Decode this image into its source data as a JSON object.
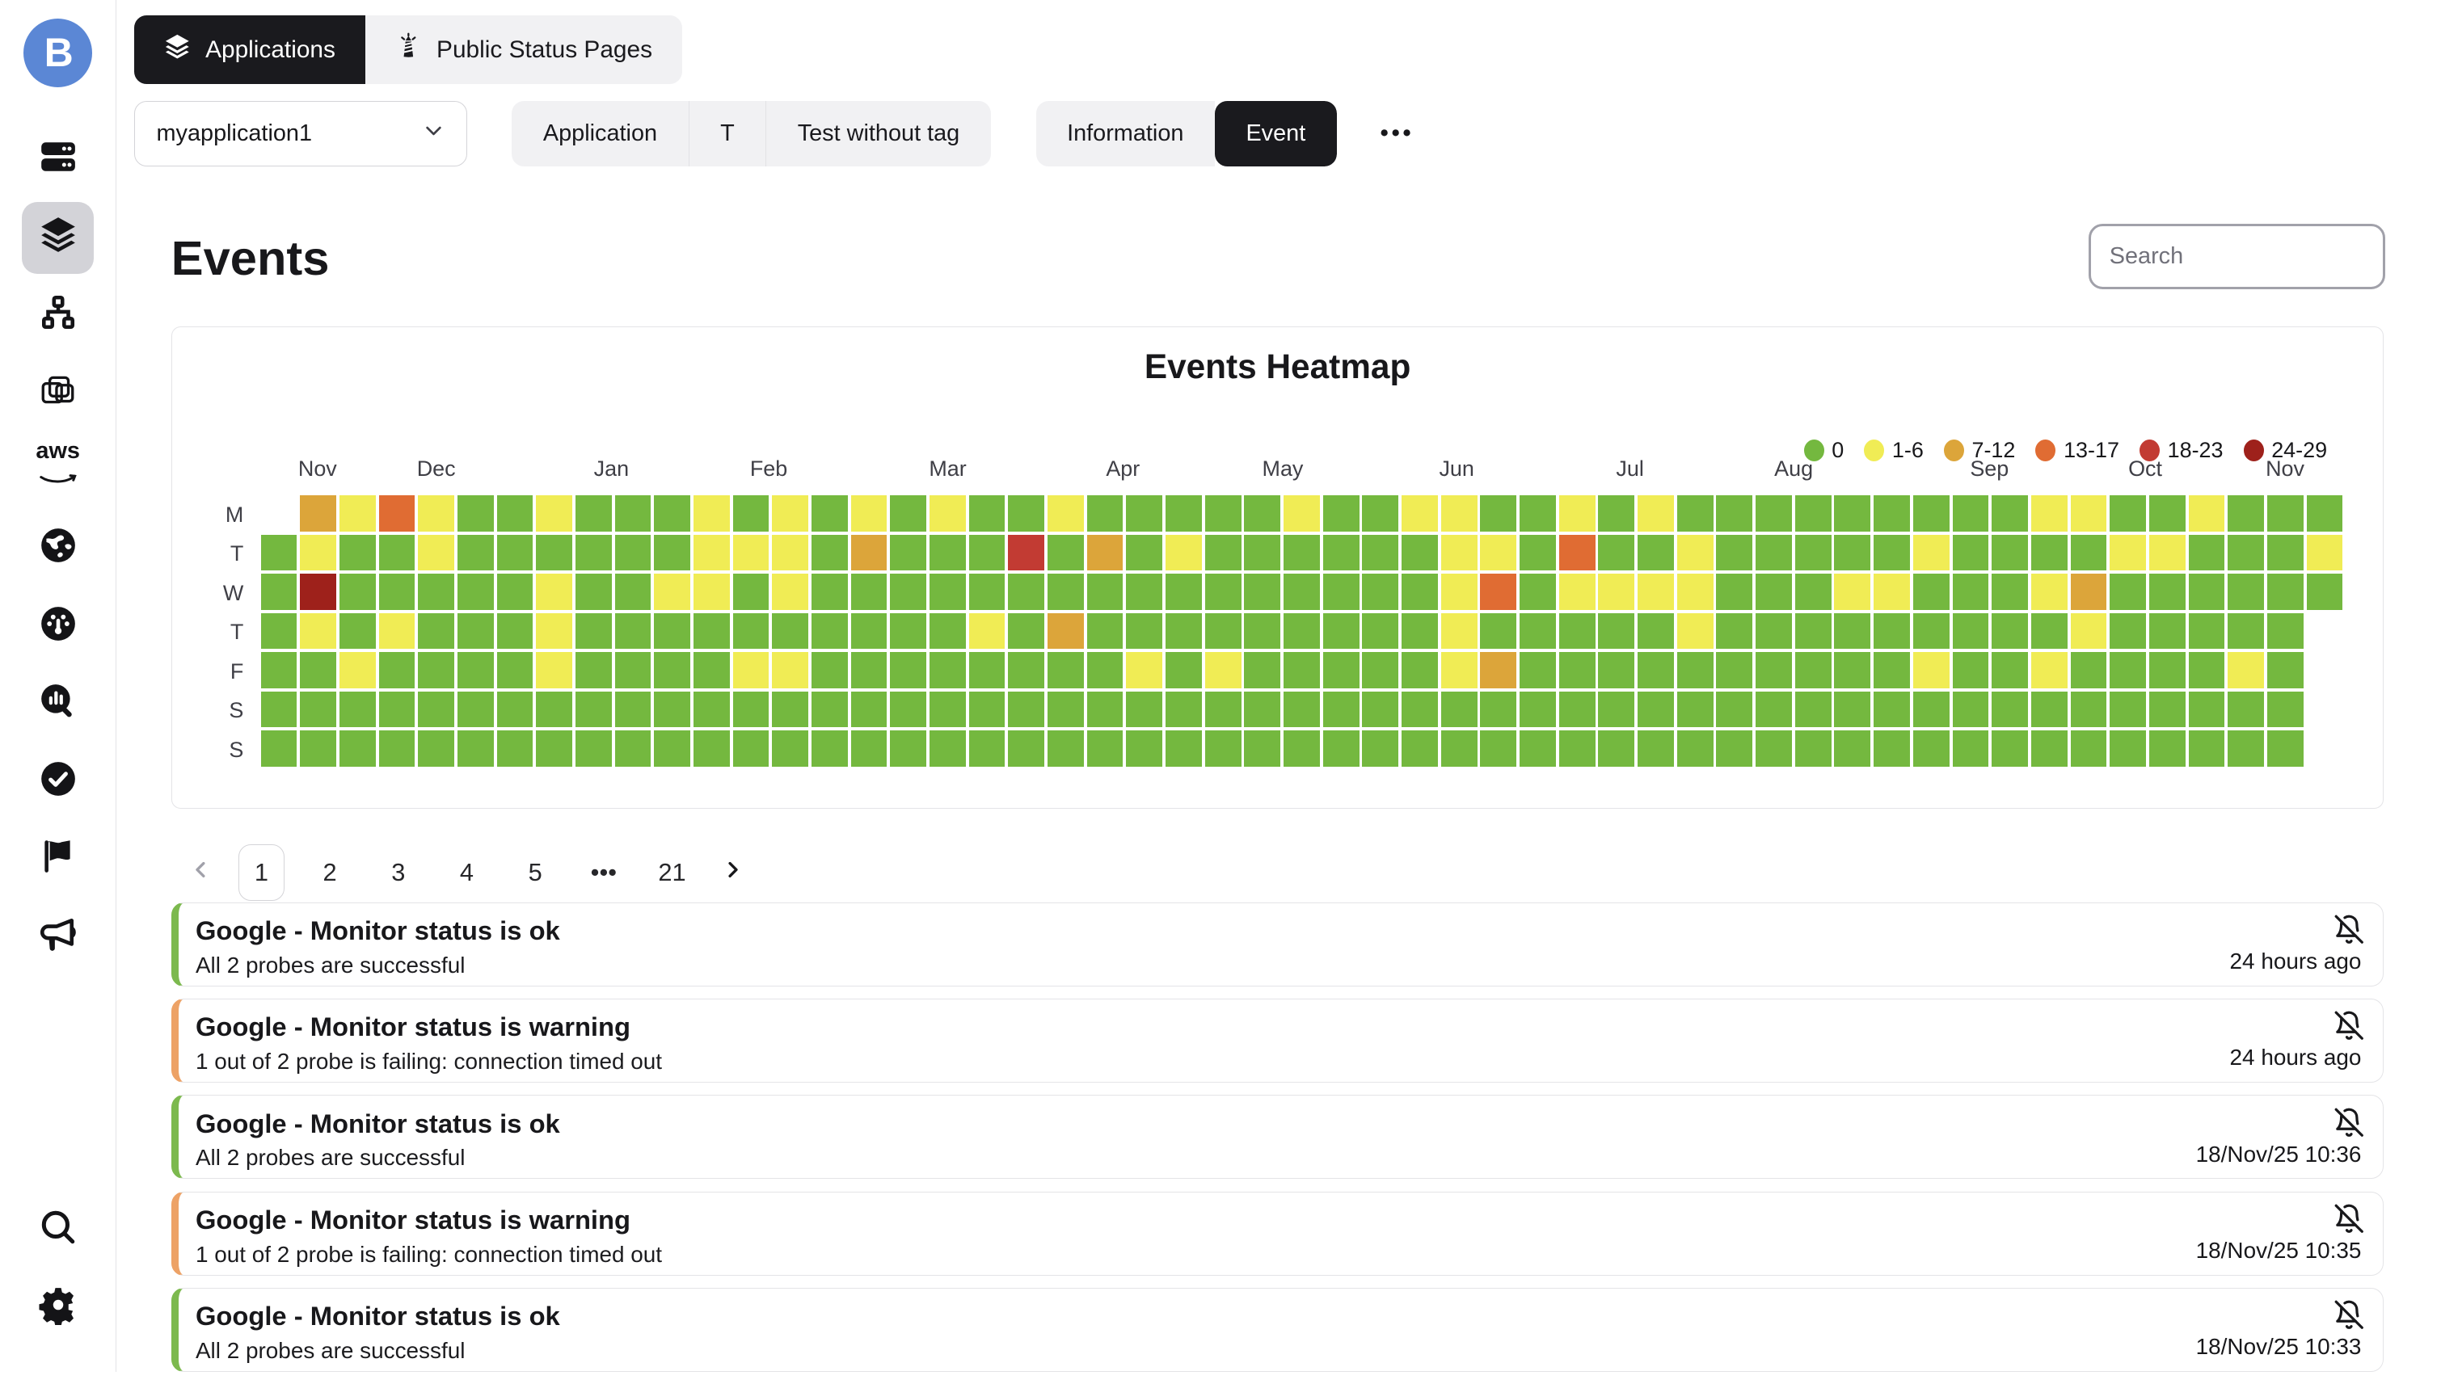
{
  "topbar": {
    "tabs": [
      {
        "label": "Applications",
        "active": true
      },
      {
        "label": "Public Status Pages",
        "active": false
      }
    ]
  },
  "toolbar": {
    "app_selector_value": "myapplication1",
    "tag_tabs": [
      "Application",
      "T",
      "Test without tag"
    ],
    "view_tabs": [
      {
        "label": "Information",
        "active": false
      },
      {
        "label": "Event",
        "active": true
      }
    ],
    "more_label": "•••"
  },
  "sidebar": {
    "icons": [
      "server-rack",
      "layers",
      "network",
      "containers",
      "aws",
      "globe",
      "gauge",
      "metric-search",
      "check-circle",
      "flag",
      "megaphone"
    ],
    "active_icon": "layers",
    "bottom_icons": [
      "search",
      "settings"
    ]
  },
  "page": {
    "title": "Events",
    "search_placeholder": "Search"
  },
  "chart_data": {
    "type": "heatmap",
    "title": "Events Heatmap",
    "row_labels": [
      "M",
      "T",
      "W",
      "T",
      "F",
      "S",
      "S"
    ],
    "months": [
      {
        "label": "Nov",
        "left_pct": 1.8
      },
      {
        "label": "Dec",
        "left_pct": 7.5
      },
      {
        "label": "Jan",
        "left_pct": 16.0
      },
      {
        "label": "Feb",
        "left_pct": 23.5
      },
      {
        "label": "Mar",
        "left_pct": 32.1
      },
      {
        "label": "Apr",
        "left_pct": 40.6
      },
      {
        "label": "May",
        "left_pct": 48.1
      },
      {
        "label": "Jun",
        "left_pct": 56.6
      },
      {
        "label": "Jul",
        "left_pct": 65.1
      },
      {
        "label": "Aug",
        "left_pct": 72.7
      },
      {
        "label": "Sep",
        "left_pct": 82.1
      },
      {
        "label": "Oct",
        "left_pct": 89.7
      },
      {
        "label": "Nov",
        "left_pct": 96.3
      }
    ],
    "legend": [
      {
        "label": "0",
        "color": "#74b83f"
      },
      {
        "label": "1-6",
        "color": "#f0ec55"
      },
      {
        "label": "7-12",
        "color": "#dca53a"
      },
      {
        "label": "13-17",
        "color": "#e06c33"
      },
      {
        "label": "18-23",
        "color": "#c23b33"
      },
      {
        "label": "24-29",
        "color": "#9e211b"
      }
    ],
    "palette": {
      "g": "#74b83f",
      "y": "#f0ec55",
      "dy": "#dca53a",
      "o": "#e06c33",
      "r": "#c23b33",
      "dr": "#9e211b"
    },
    "columns": 53,
    "grid": [
      [
        "",
        "dy",
        "y",
        "o",
        "y",
        "g",
        "g",
        "y",
        "g",
        "g",
        "g",
        "y",
        "g",
        "y",
        "g",
        "y",
        "g",
        "y",
        "g",
        "g",
        "y",
        "g",
        "g",
        "g",
        "g",
        "g",
        "y",
        "g",
        "g",
        "y",
        "y",
        "g",
        "g",
        "y",
        "g",
        "y",
        "g",
        "g",
        "g",
        "g",
        "g",
        "g",
        "g",
        "g",
        "g",
        "y",
        "y",
        "g",
        "g",
        "y",
        "g",
        "g",
        "g"
      ],
      [
        "g",
        "y",
        "g",
        "g",
        "y",
        "g",
        "g",
        "g",
        "g",
        "g",
        "g",
        "y",
        "y",
        "y",
        "g",
        "dy",
        "g",
        "g",
        "g",
        "r",
        "g",
        "dy",
        "g",
        "y",
        "g",
        "g",
        "g",
        "g",
        "g",
        "g",
        "y",
        "y",
        "g",
        "o",
        "g",
        "g",
        "y",
        "g",
        "g",
        "g",
        "g",
        "g",
        "y",
        "g",
        "g",
        "g",
        "g",
        "y",
        "y",
        "g",
        "g",
        "g",
        "y"
      ],
      [
        "g",
        "dr",
        "g",
        "g",
        "g",
        "g",
        "g",
        "y",
        "g",
        "g",
        "y",
        "y",
        "g",
        "y",
        "g",
        "g",
        "g",
        "g",
        "g",
        "g",
        "g",
        "g",
        "g",
        "g",
        "g",
        "g",
        "g",
        "g",
        "g",
        "g",
        "y",
        "o",
        "g",
        "y",
        "y",
        "y",
        "y",
        "g",
        "g",
        "g",
        "y",
        "y",
        "g",
        "g",
        "g",
        "y",
        "dy",
        "g",
        "g",
        "g",
        "g",
        "g",
        "g"
      ],
      [
        "g",
        "y",
        "g",
        "y",
        "g",
        "g",
        "g",
        "y",
        "g",
        "g",
        "g",
        "g",
        "g",
        "g",
        "g",
        "g",
        "g",
        "g",
        "y",
        "g",
        "dy",
        "g",
        "g",
        "g",
        "g",
        "g",
        "g",
        "g",
        "g",
        "g",
        "y",
        "g",
        "g",
        "g",
        "g",
        "g",
        "y",
        "g",
        "g",
        "g",
        "g",
        "g",
        "g",
        "g",
        "g",
        "g",
        "y",
        "g",
        "g",
        "g",
        "g",
        "g",
        ""
      ],
      [
        "g",
        "g",
        "y",
        "g",
        "g",
        "g",
        "g",
        "y",
        "g",
        "g",
        "g",
        "g",
        "y",
        "y",
        "g",
        "g",
        "g",
        "g",
        "g",
        "g",
        "g",
        "g",
        "y",
        "g",
        "y",
        "g",
        "g",
        "g",
        "g",
        "g",
        "y",
        "dy",
        "g",
        "g",
        "g",
        "g",
        "g",
        "g",
        "g",
        "g",
        "g",
        "g",
        "y",
        "g",
        "g",
        "y",
        "g",
        "g",
        "g",
        "g",
        "y",
        "g",
        ""
      ],
      [
        "g",
        "g",
        "g",
        "g",
        "g",
        "g",
        "g",
        "g",
        "g",
        "g",
        "g",
        "g",
        "g",
        "g",
        "g",
        "g",
        "g",
        "g",
        "g",
        "g",
        "g",
        "g",
        "g",
        "g",
        "g",
        "g",
        "g",
        "g",
        "g",
        "g",
        "g",
        "g",
        "g",
        "g",
        "g",
        "g",
        "g",
        "g",
        "g",
        "g",
        "g",
        "g",
        "g",
        "g",
        "g",
        "g",
        "g",
        "g",
        "g",
        "g",
        "g",
        "g",
        ""
      ],
      [
        "g",
        "g",
        "g",
        "g",
        "g",
        "g",
        "g",
        "g",
        "g",
        "g",
        "g",
        "g",
        "g",
        "g",
        "g",
        "g",
        "g",
        "g",
        "g",
        "g",
        "g",
        "g",
        "g",
        "g",
        "g",
        "g",
        "g",
        "g",
        "g",
        "g",
        "g",
        "g",
        "g",
        "g",
        "g",
        "g",
        "g",
        "g",
        "g",
        "g",
        "g",
        "g",
        "g",
        "g",
        "g",
        "g",
        "g",
        "g",
        "g",
        "g",
        "g",
        "g",
        ""
      ]
    ]
  },
  "pagination": {
    "pages": [
      "1",
      "2",
      "3",
      "4",
      "5",
      "•••",
      "21"
    ],
    "current": "1"
  },
  "status_colors": {
    "ok": "#7cb94e",
    "warning": "#eda266"
  },
  "events": [
    {
      "status": "ok",
      "title": "Google - Monitor status is ok",
      "description": "All 2 probes are successful",
      "time": "24 hours ago"
    },
    {
      "status": "warning",
      "title": "Google - Monitor status is warning",
      "description": "1 out of 2 probe is failing: connection timed out",
      "time": "24 hours ago"
    },
    {
      "status": "ok",
      "title": "Google - Monitor status is ok",
      "description": "All 2 probes are successful",
      "time": "18/Nov/25 10:36"
    },
    {
      "status": "warning",
      "title": "Google - Monitor status is warning",
      "description": "1 out of 2 probe is failing: connection timed out",
      "time": "18/Nov/25 10:35"
    },
    {
      "status": "ok",
      "title": "Google - Monitor status is ok",
      "description": "All 2 probes are successful",
      "time": "18/Nov/25 10:33"
    }
  ]
}
